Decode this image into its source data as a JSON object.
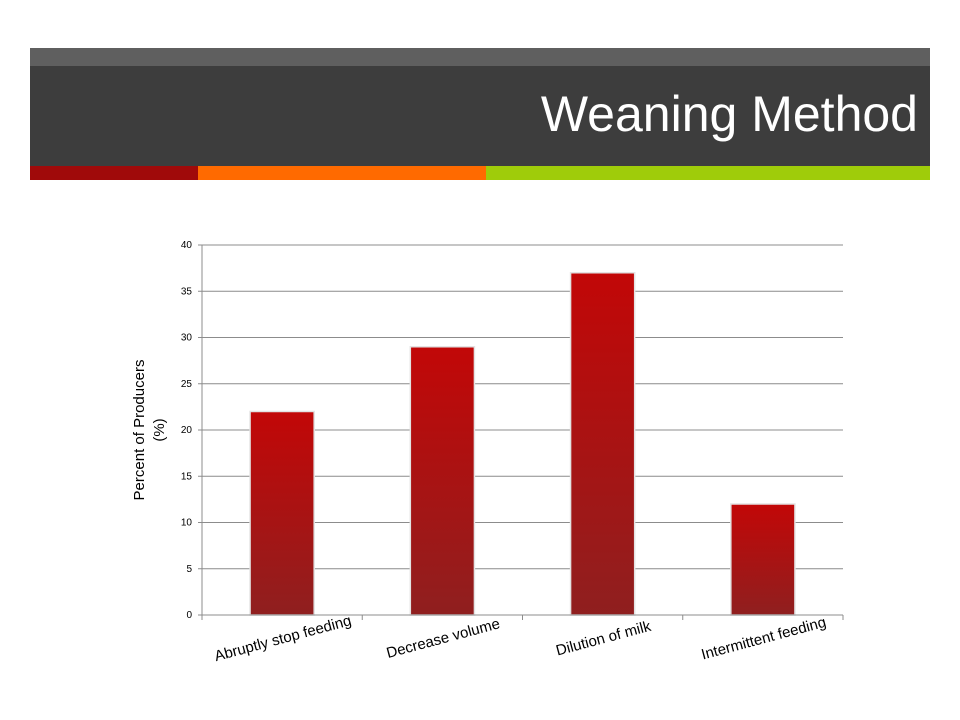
{
  "slide": {
    "title": "Weaning Method",
    "colors": {
      "title_bar": "#3d3d3d",
      "title_bar_top": "#5f5f5f",
      "accent_red": "#a00a0a",
      "accent_orange": "#ff6a00",
      "accent_green": "#9fcc0a",
      "bar": "#b30c0c"
    }
  },
  "chart_data": {
    "type": "bar",
    "title": "",
    "xlabel": "",
    "ylabel": "Percent of Producers (%)",
    "ylabel_lines": [
      "Percent of Producers",
      "(%)"
    ],
    "categories": [
      "Abruptly stop feeding",
      "Decrease volume",
      "Dilution of milk",
      "Intermittent feeding"
    ],
    "values": [
      22,
      29,
      37,
      12
    ],
    "ylim": [
      0,
      40
    ],
    "yticks": [
      0,
      5,
      10,
      15,
      20,
      25,
      30,
      35,
      40
    ],
    "grid": true,
    "legend": "none"
  }
}
